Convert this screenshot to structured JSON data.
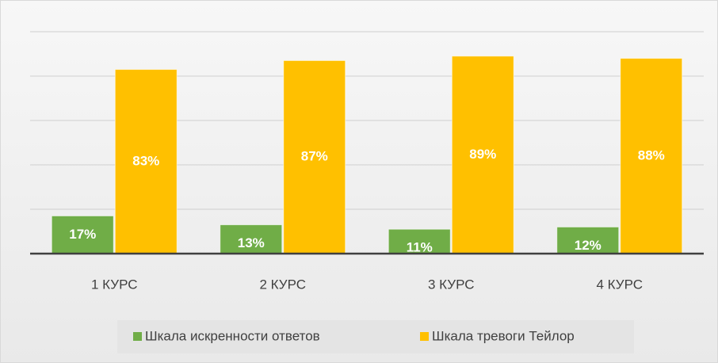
{
  "chart_data": {
    "type": "bar",
    "categories": [
      "1 КУРС",
      "2 КУРС",
      "3 КУРС",
      "4 КУРС"
    ],
    "series": [
      {
        "name": "Шкала искренности ответов",
        "color": "#70ad47",
        "values": [
          17,
          13,
          11,
          12
        ],
        "value_labels": [
          "17%",
          "13%",
          "11%",
          "12%"
        ]
      },
      {
        "name": "Шкала тревоги Тейлор",
        "color": "#ffc000",
        "values": [
          83,
          87,
          89,
          88
        ],
        "value_labels": [
          "83%",
          "87%",
          "89%",
          "88%"
        ]
      }
    ],
    "ylim": [
      0,
      100
    ],
    "yticks": [
      0,
      20,
      40,
      60,
      80,
      100
    ],
    "grid": true,
    "legend": "bottom"
  }
}
